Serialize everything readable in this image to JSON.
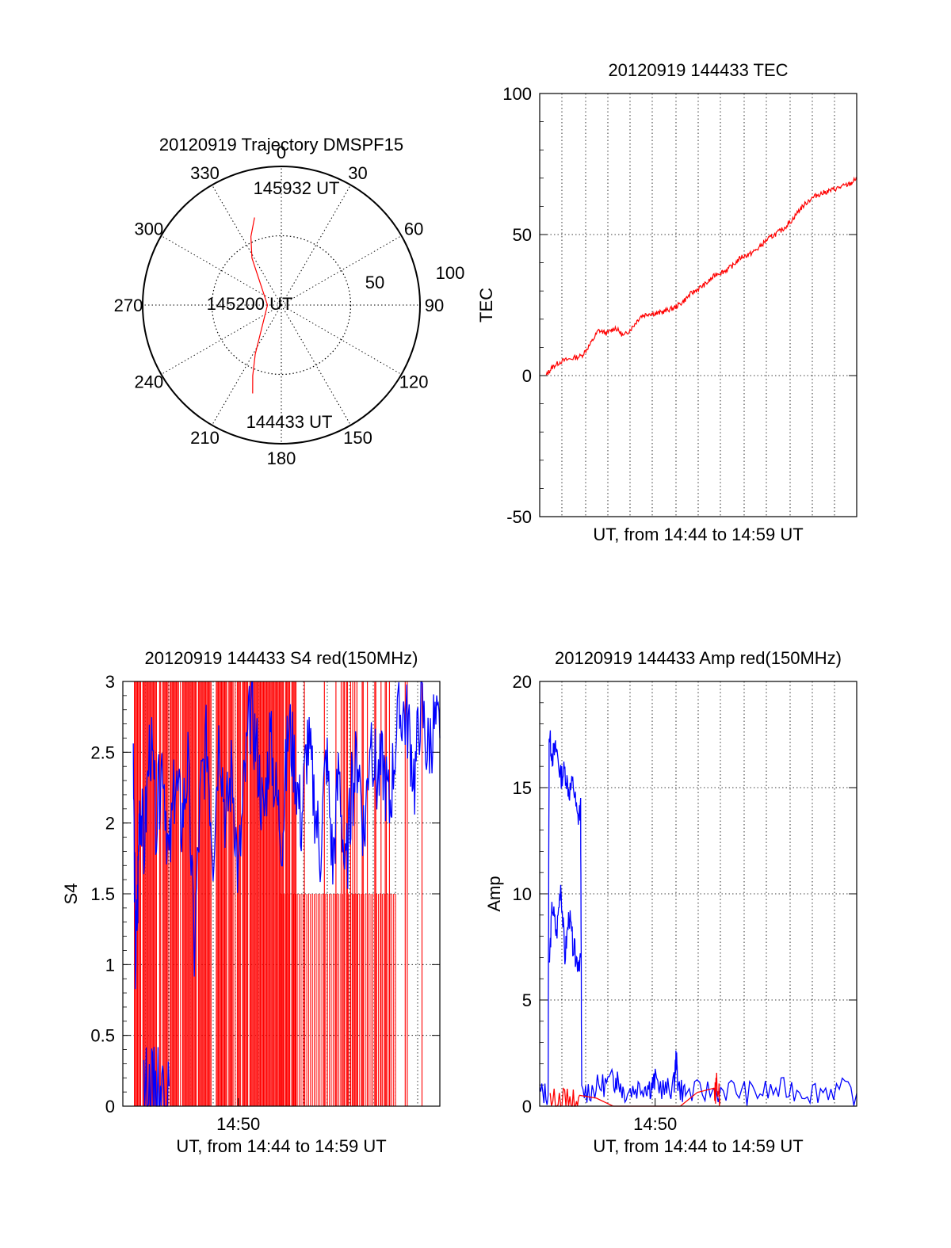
{
  "colors": {
    "red": "#ff0000",
    "blue": "#0000ff",
    "axis": "#000000"
  },
  "chart_data": [
    {
      "id": "trajectory",
      "type": "polar",
      "title": "20120919 Trajectory DMSPF15",
      "angle_labels": [
        "0",
        "30",
        "60",
        "90",
        "120",
        "150",
        "180",
        "210",
        "240",
        "270",
        "300",
        "330"
      ],
      "radial_labels": [
        "50",
        "100"
      ],
      "rlim": [
        0,
        100
      ],
      "grid": true,
      "series": [
        {
          "color": "red",
          "points": [
            [
              -17,
              66
            ],
            [
              -24,
              54
            ],
            [
              -32,
              40
            ],
            [
              -90,
              10
            ],
            [
              -152,
              40
            ],
            [
              -158,
              55
            ],
            [
              -162,
              67
            ]
          ]
        }
      ],
      "annotations": [
        {
          "text": "145932 UT",
          "az": -17,
          "r": 66
        },
        {
          "text": "145200 UT",
          "az": -90,
          "r": 10
        },
        {
          "text": "144433 UT",
          "az": -162,
          "r": 67
        }
      ]
    },
    {
      "id": "tec",
      "type": "line",
      "title": "20120919 144433 TEC",
      "xlabel": "UT, from 14:44 to 14:59 UT",
      "ylabel": "TEC",
      "xlim": [
        0,
        15.1
      ],
      "ylim": [
        -50,
        100
      ],
      "yticks": [
        "100",
        "50",
        "0",
        "-50"
      ],
      "xticks": [],
      "grid": true,
      "series": [
        {
          "color": "red",
          "x": [
            0.3,
            0.6,
            1.0,
            1.5,
            2.0,
            2.4,
            2.8,
            3.2,
            3.6,
            4.0,
            4.4,
            4.8,
            5.2,
            5.6,
            6.0,
            6.4,
            6.8,
            7.2,
            7.6,
            8.0,
            8.4,
            8.8,
            9.2,
            9.6,
            10.0,
            10.4,
            10.8,
            11.2,
            11.6,
            12.0,
            12.4,
            12.8,
            13.2,
            13.6,
            14.0,
            14.4,
            14.8,
            15.1
          ],
          "y": [
            0,
            3,
            5,
            6,
            7,
            11,
            16,
            15,
            17,
            14,
            17,
            21,
            22,
            22,
            23,
            24,
            26,
            29,
            31,
            33,
            36,
            37,
            39,
            42,
            43,
            45,
            48,
            50,
            52,
            55,
            59,
            62,
            64,
            65,
            66,
            67,
            68,
            70
          ]
        }
      ]
    },
    {
      "id": "s4",
      "type": "line",
      "title": "20120919 144433 S4 red(150MHz)",
      "xlabel": "UT, from 14:44 to 14:59 UT",
      "ylabel": "S4",
      "xlim": [
        0,
        15.1
      ],
      "ylim": [
        0,
        3
      ],
      "yticks": [
        "3",
        "2.5",
        "2",
        "1.5",
        "1",
        "0.5",
        "0"
      ],
      "xticks": [
        {
          "label": "14:50",
          "x": 5.5
        }
      ],
      "grid": true,
      "series": [
        {
          "name": "red",
          "color": "red",
          "style": "dense-spikes"
        },
        {
          "name": "blue",
          "color": "blue",
          "x": [
            0.5,
            0.6,
            0.7,
            0.8,
            1.0,
            1.3,
            1.6,
            1.9,
            2.2,
            2.5,
            2.8,
            3.1,
            3.4,
            3.7,
            4.0,
            4.3,
            4.6,
            4.9,
            5.2,
            5.5,
            5.8,
            6.1,
            6.4,
            6.7,
            7.0,
            7.3,
            7.6,
            7.9,
            8.2,
            8.5,
            8.8,
            9.1,
            9.4,
            9.7,
            10.0,
            10.3,
            10.6,
            10.9,
            11.2,
            11.5,
            11.8,
            12.1,
            12.4,
            12.7,
            13.0,
            13.3,
            13.6,
            13.9,
            14.2,
            14.5,
            14.8,
            15.1
          ],
          "y": [
            2.4,
            1.0,
            1.4,
            2.2,
            1.8,
            2.6,
            2.0,
            2.5,
            1.7,
            2.3,
            2.0,
            2.4,
            1.1,
            2.2,
            2.6,
            1.8,
            2.7,
            2.0,
            2.4,
            1.6,
            2.3,
            2.8,
            2.5,
            2.0,
            2.6,
            2.2,
            1.9,
            2.7,
            2.4,
            2.0,
            2.6,
            2.2,
            1.8,
            2.5,
            1.7,
            2.4,
            1.6,
            2.2,
            2.5,
            1.9,
            2.7,
            2.3,
            2.4,
            2.1,
            2.6,
            2.8,
            2.7,
            2.3,
            2.9,
            2.5,
            2.7,
            2.6
          ]
        },
        {
          "name": "blue-low",
          "color": "blue",
          "x": [
            1.0,
            1.3,
            1.6,
            1.9,
            2.2
          ],
          "y": [
            0.14,
            0.13,
            0.15,
            0.13,
            0.14
          ]
        }
      ]
    },
    {
      "id": "amp",
      "type": "line",
      "title": "20120919 144433 Amp red(150MHz)",
      "xlabel": "UT, from 14:44 to 14:59 UT",
      "ylabel": "Amp",
      "xlim": [
        0,
        15.1
      ],
      "ylim": [
        0,
        20
      ],
      "yticks": [
        "20",
        "15",
        "10",
        "5",
        "0"
      ],
      "xticks": [
        {
          "label": "14:50",
          "x": 5.5
        }
      ],
      "grid": true,
      "series": [
        {
          "name": "blue",
          "color": "blue",
          "x": [
            0,
            0.4,
            0.45,
            0.6,
            0.8,
            1.0,
            1.2,
            1.4,
            1.6,
            1.8,
            1.95,
            2.0,
            2.5,
            3.0,
            3.5,
            3.7,
            4.0,
            4.5,
            5.0,
            5.3,
            5.5,
            6.0,
            6.4,
            6.5,
            6.6,
            7.0,
            8.0,
            9.0,
            10.0,
            11.0,
            12.0,
            13.0,
            14.0,
            15.1
          ],
          "y": [
            0.6,
            0.6,
            17.5,
            16.5,
            16.8,
            15.5,
            15.8,
            14.8,
            15.2,
            13.5,
            14.0,
            0.6,
            0.8,
            1.0,
            1.2,
            1.3,
            0.7,
            0.8,
            1.0,
            0.9,
            1.2,
            0.7,
            1.0,
            2.3,
            0.9,
            0.6,
            0.7,
            0.8,
            0.6,
            0.7,
            0.8,
            0.7,
            0.8,
            0.6
          ]
        },
        {
          "name": "blue-low",
          "color": "blue",
          "x": [
            0.45,
            0.6,
            0.8,
            1.0,
            1.2,
            1.4,
            1.6,
            1.8,
            1.95
          ],
          "y": [
            6.5,
            9.5,
            8.0,
            10.5,
            7.0,
            9.0,
            7.5,
            6.8,
            7.0
          ]
        },
        {
          "name": "red",
          "color": "red",
          "x": [
            0.5,
            1.0,
            1.5,
            1.9,
            8.3,
            8.45,
            8.6
          ],
          "y": [
            0.25,
            0.3,
            0.25,
            0.2,
            0.3,
            1.1,
            0.3
          ]
        }
      ]
    }
  ]
}
